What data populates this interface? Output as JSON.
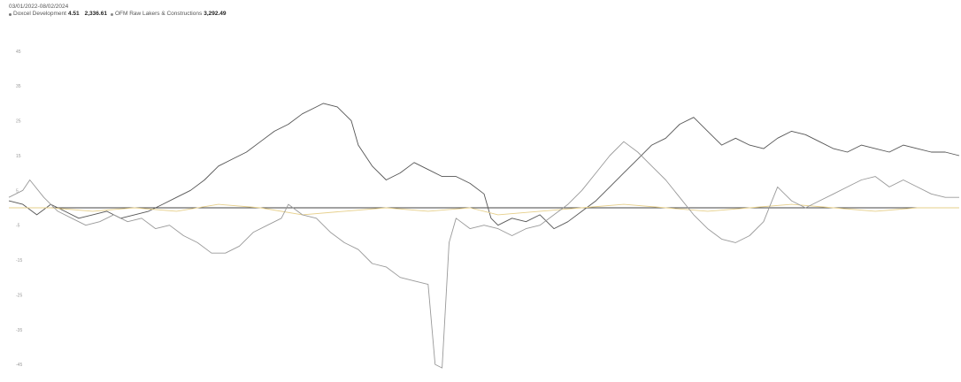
{
  "header": {
    "range_start": "03/01/2022",
    "range_sep": " - ",
    "range_end": "08/02/2024",
    "legend": [
      {
        "label": "Doxcel Development",
        "value": "4.51",
        "color": "#777777"
      },
      {
        "label": "",
        "value": "2,336.61",
        "color": "#e6cf8a"
      },
      {
        "label": "OFM Raw Lakers & Constructions",
        "value": "3,292.49",
        "color": "#888888"
      }
    ]
  },
  "chart_data": {
    "type": "line",
    "title": "",
    "xlabel": "",
    "ylabel": "",
    "ylim": [
      -47,
      47
    ],
    "y_ticks": [
      "45",
      "35",
      "25",
      "15",
      "5",
      "-5",
      "-15",
      "-25",
      "-35",
      "-45"
    ],
    "baseline": 0,
    "grid": false,
    "legend_placement": "top-left",
    "series": [
      {
        "name": "Doxcel Development",
        "color": "#555555",
        "points": [
          [
            0,
            2
          ],
          [
            2,
            1
          ],
          [
            4,
            -2
          ],
          [
            6,
            1
          ],
          [
            8,
            -1
          ],
          [
            10,
            -3
          ],
          [
            12,
            -2
          ],
          [
            14,
            -1
          ],
          [
            16,
            -3
          ],
          [
            18,
            -2
          ],
          [
            20,
            -1
          ],
          [
            22,
            1
          ],
          [
            24,
            3
          ],
          [
            26,
            5
          ],
          [
            28,
            8
          ],
          [
            30,
            12
          ],
          [
            32,
            14
          ],
          [
            34,
            16
          ],
          [
            36,
            19
          ],
          [
            38,
            22
          ],
          [
            40,
            24
          ],
          [
            42,
            27
          ],
          [
            44,
            29
          ],
          [
            45,
            30
          ],
          [
            47,
            29
          ],
          [
            49,
            25
          ],
          [
            50,
            18
          ],
          [
            52,
            12
          ],
          [
            54,
            8
          ],
          [
            56,
            10
          ],
          [
            58,
            13
          ],
          [
            60,
            11
          ],
          [
            62,
            9
          ],
          [
            64,
            9
          ],
          [
            66,
            7
          ],
          [
            68,
            4
          ],
          [
            69,
            -3
          ],
          [
            70,
            -5
          ],
          [
            72,
            -3
          ],
          [
            74,
            -4
          ],
          [
            76,
            -2
          ],
          [
            78,
            -6
          ],
          [
            80,
            -4
          ],
          [
            82,
            -1
          ],
          [
            84,
            2
          ],
          [
            86,
            6
          ],
          [
            88,
            10
          ],
          [
            90,
            14
          ],
          [
            92,
            18
          ],
          [
            94,
            20
          ],
          [
            96,
            24
          ],
          [
            98,
            26
          ],
          [
            100,
            22
          ],
          [
            102,
            18
          ],
          [
            104,
            20
          ],
          [
            106,
            18
          ],
          [
            108,
            17
          ],
          [
            110,
            20
          ],
          [
            112,
            22
          ],
          [
            114,
            21
          ],
          [
            116,
            19
          ],
          [
            118,
            17
          ],
          [
            120,
            16
          ],
          [
            122,
            18
          ],
          [
            124,
            17
          ],
          [
            126,
            16
          ],
          [
            128,
            18
          ],
          [
            130,
            17
          ],
          [
            132,
            16
          ],
          [
            134,
            16
          ],
          [
            136,
            15
          ]
        ]
      },
      {
        "name": "",
        "color": "#e6cf8a",
        "points": [
          [
            0,
            0
          ],
          [
            6,
            0
          ],
          [
            12,
            -1
          ],
          [
            18,
            0
          ],
          [
            24,
            -1
          ],
          [
            30,
            1
          ],
          [
            36,
            0
          ],
          [
            42,
            -2
          ],
          [
            48,
            -1
          ],
          [
            54,
            0
          ],
          [
            60,
            -1
          ],
          [
            66,
            0
          ],
          [
            70,
            -2
          ],
          [
            76,
            -1
          ],
          [
            82,
            0
          ],
          [
            88,
            1
          ],
          [
            94,
            0
          ],
          [
            100,
            -1
          ],
          [
            106,
            0
          ],
          [
            112,
            1
          ],
          [
            118,
            0
          ],
          [
            124,
            -1
          ],
          [
            130,
            0
          ],
          [
            136,
            0
          ]
        ]
      },
      {
        "name": "OFM Raw Lakers & Constructions",
        "color": "#999999",
        "points": [
          [
            0,
            3
          ],
          [
            2,
            5
          ],
          [
            3,
            8
          ],
          [
            5,
            3
          ],
          [
            7,
            -1
          ],
          [
            9,
            -3
          ],
          [
            11,
            -5
          ],
          [
            13,
            -4
          ],
          [
            15,
            -2
          ],
          [
            17,
            -4
          ],
          [
            19,
            -3
          ],
          [
            21,
            -6
          ],
          [
            23,
            -5
          ],
          [
            25,
            -8
          ],
          [
            27,
            -10
          ],
          [
            29,
            -13
          ],
          [
            31,
            -13
          ],
          [
            33,
            -11
          ],
          [
            35,
            -7
          ],
          [
            37,
            -5
          ],
          [
            39,
            -3
          ],
          [
            40,
            1
          ],
          [
            42,
            -2
          ],
          [
            44,
            -3
          ],
          [
            46,
            -7
          ],
          [
            48,
            -10
          ],
          [
            50,
            -12
          ],
          [
            52,
            -16
          ],
          [
            54,
            -17
          ],
          [
            56,
            -20
          ],
          [
            58,
            -21
          ],
          [
            60,
            -22
          ],
          [
            61,
            -45
          ],
          [
            62,
            -46
          ],
          [
            63,
            -10
          ],
          [
            64,
            -3
          ],
          [
            66,
            -6
          ],
          [
            68,
            -5
          ],
          [
            70,
            -6
          ],
          [
            72,
            -8
          ],
          [
            74,
            -6
          ],
          [
            76,
            -5
          ],
          [
            78,
            -2
          ],
          [
            80,
            1
          ],
          [
            82,
            5
          ],
          [
            84,
            10
          ],
          [
            86,
            15
          ],
          [
            88,
            19
          ],
          [
            90,
            16
          ],
          [
            92,
            12
          ],
          [
            94,
            8
          ],
          [
            96,
            3
          ],
          [
            98,
            -2
          ],
          [
            100,
            -6
          ],
          [
            102,
            -9
          ],
          [
            104,
            -10
          ],
          [
            106,
            -8
          ],
          [
            108,
            -4
          ],
          [
            110,
            6
          ],
          [
            112,
            2
          ],
          [
            114,
            0
          ],
          [
            116,
            2
          ],
          [
            118,
            4
          ],
          [
            120,
            6
          ],
          [
            122,
            8
          ],
          [
            124,
            9
          ],
          [
            126,
            6
          ],
          [
            128,
            8
          ],
          [
            130,
            6
          ],
          [
            132,
            4
          ],
          [
            134,
            3
          ],
          [
            136,
            3
          ]
        ]
      }
    ]
  }
}
